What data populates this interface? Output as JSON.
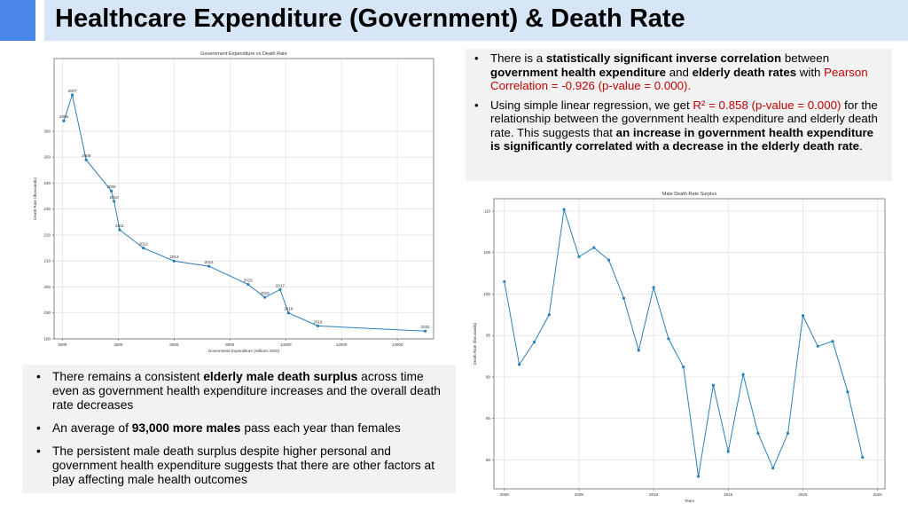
{
  "slide": {
    "title": "Healthcare Expenditure (Government) & Death Rate",
    "accent_color": "#4a86e8",
    "title_bar_color": "#d6e6f6"
  },
  "top_panel": {
    "bullet1": {
      "a": "There is a ",
      "b": "statistically significant inverse correlation",
      "c": " between ",
      "d": "government health expenditure",
      "e": " and ",
      "f": "elderly death rates",
      "g": " with ",
      "h": "Pearson Correlation = -0.926 (p-value = 0.000)."
    },
    "bullet2": {
      "a": "Using simple linear regression, we get ",
      "b": "R² = 0.858  (p-value  = 0.000)",
      "c": " for the relationship between the government health expenditure and elderly death rate. This suggests that ",
      "d": "an increase in government health expenditure is significantly correlated with a decrease in the elderly death rate",
      "e": "."
    }
  },
  "bottom_panel": {
    "bullet1": {
      "a": "There remains a consistent ",
      "b": "elderly male death surplus",
      "c": " across time even as government health expenditure increases and the overall death rate decreases"
    },
    "bullet2": {
      "a": "An average of ",
      "b": "93,000 more males",
      "c": " pass each year than females"
    },
    "bullet3": "The persistent male death surplus despite higher personal and government health expenditure suggests that there are other factors at play affecting male health outcomes"
  },
  "chart_data": [
    {
      "type": "line",
      "title": "Government Expenditure vs Death Rate",
      "xlabel": "Government Expenditure (millions SGD)",
      "ylabel": "Death Rate (thousands)",
      "xlim": [
        1700,
        15300
      ],
      "ylim": [
        180,
        288
      ],
      "xticks": [
        2000,
        4000,
        6000,
        8000,
        10000,
        12000,
        14000
      ],
      "yticks": [
        180,
        190,
        200,
        210,
        220,
        230,
        240,
        250,
        260
      ],
      "xtick_labels": [
        "2000",
        "4000",
        "6000",
        "8000",
        "10000",
        "12000",
        "14000"
      ],
      "ytick_labels": [
        "180",
        "190",
        "200",
        "210",
        "220",
        "230",
        "240",
        "250",
        "260"
      ],
      "grid": true,
      "color": "#2a7fba",
      "points": [
        {
          "label": "2006",
          "x": 2050,
          "y": 264
        },
        {
          "label": "2007",
          "x": 2350,
          "y": 274
        },
        {
          "label": "2008",
          "x": 2850,
          "y": 249
        },
        {
          "label": "2009",
          "x": 3750,
          "y": 237
        },
        {
          "label": "2010",
          "x": 3850,
          "y": 233
        },
        {
          "label": "2011",
          "x": 4050,
          "y": 222
        },
        {
          "label": "2012",
          "x": 4900,
          "y": 215
        },
        {
          "label": "2013",
          "x": 6000,
          "y": 210
        },
        {
          "label": "2014",
          "x": 7250,
          "y": 208
        },
        {
          "label": "2015",
          "x": 8650,
          "y": 201
        },
        {
          "label": "2016",
          "x": 9250,
          "y": 196
        },
        {
          "label": "2017",
          "x": 9800,
          "y": 199
        },
        {
          "label": "2018",
          "x": 10100,
          "y": 190
        },
        {
          "label": "2019",
          "x": 11150,
          "y": 185
        },
        {
          "label": "2020",
          "x": 15000,
          "y": 183
        }
      ]
    },
    {
      "type": "line",
      "title": "Male Death Rate Surplus",
      "xlabel": "Years",
      "ylabel": "Death Rate (thousands)",
      "xlim": [
        1999.3,
        2025.5
      ],
      "ylim": [
        76.5,
        111.5
      ],
      "xticks": [
        2000,
        2005,
        2010,
        2015,
        2020,
        2025
      ],
      "yticks": [
        80,
        85,
        90,
        95,
        100,
        105,
        110
      ],
      "xtick_labels": [
        "2000",
        "2005",
        "2010",
        "2015",
        "2020",
        "2025"
      ],
      "ytick_labels": [
        "80",
        "85",
        "90",
        "95",
        "100",
        "105",
        "110"
      ],
      "grid": true,
      "color": "#2a7fba",
      "x": [
        2000,
        2001,
        2002,
        2003,
        2004,
        2005,
        2006,
        2007,
        2008,
        2009,
        2010,
        2011,
        2012,
        2013,
        2014,
        2015,
        2016,
        2017,
        2018,
        2019,
        2020,
        2021,
        2022,
        2023,
        2024
      ],
      "y": [
        101.5,
        91.5,
        94.2,
        97.5,
        110.2,
        104.5,
        105.6,
        104.1,
        99.5,
        93.2,
        100.8,
        94.6,
        91.2,
        78,
        89,
        81,
        90.3,
        83.2,
        79,
        83.2,
        97.4,
        93.7,
        94.3,
        88.2,
        80.3
      ]
    }
  ]
}
